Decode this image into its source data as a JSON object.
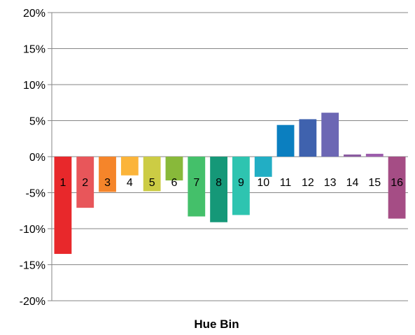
{
  "chart_data": {
    "type": "bar",
    "title": "",
    "xlabel": "Hue Bin",
    "ylabel": "",
    "ylim": [
      -20,
      20
    ],
    "y_ticks": [
      20,
      15,
      10,
      5,
      0,
      -5,
      -10,
      -15,
      -20
    ],
    "y_tick_labels": [
      "20%",
      "15%",
      "10%",
      "5%",
      "0%",
      "-5%",
      "-10%",
      "-15%",
      "-20%"
    ],
    "grid": true,
    "legend": "none",
    "categories": [
      "1",
      "2",
      "3",
      "4",
      "5",
      "6",
      "7",
      "8",
      "9",
      "10",
      "11",
      "12",
      "13",
      "14",
      "15",
      "16"
    ],
    "values": [
      -13.5,
      -7.1,
      -4.9,
      -2.6,
      -4.8,
      -3.3,
      -8.3,
      -9.1,
      -8.1,
      -2.8,
      4.4,
      5.2,
      6.1,
      0.3,
      0.4,
      -8.6
    ],
    "colors": [
      "#e8282b",
      "#e8565a",
      "#f5852a",
      "#fbb43a",
      "#cccc44",
      "#88b93a",
      "#44c06a",
      "#159878",
      "#2ec4b0",
      "#22aec4",
      "#0b7fc0",
      "#3f62ae",
      "#6c67b4",
      "#8a5aa0",
      "#9c5cac",
      "#a54d85"
    ]
  }
}
